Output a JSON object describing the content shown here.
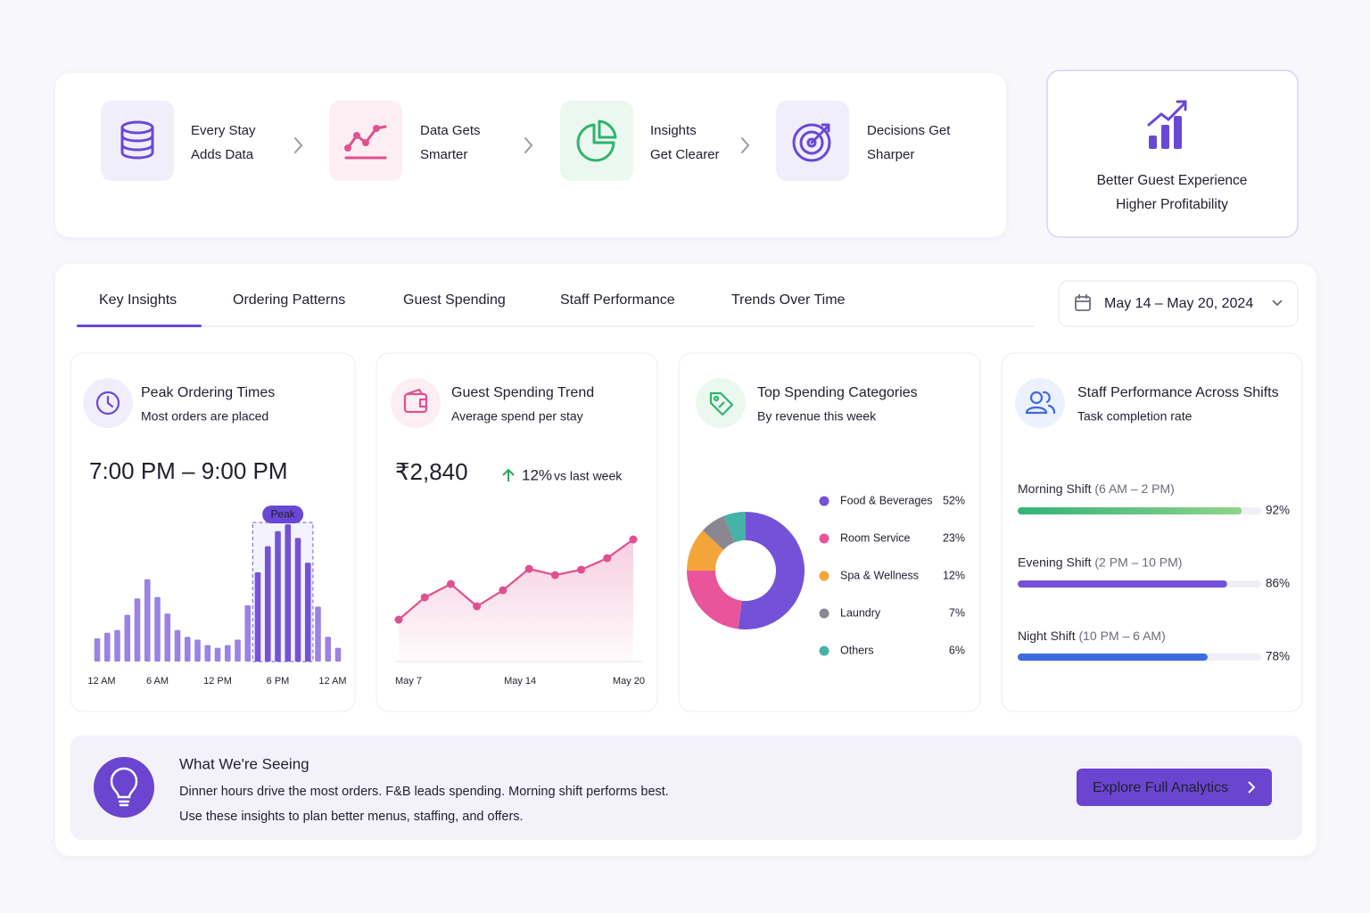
{
  "flow": {
    "steps": [
      {
        "lines": [
          "Every Stay",
          "Adds Data"
        ]
      },
      {
        "lines": [
          "Data Gets",
          "Smarter"
        ]
      },
      {
        "lines": [
          "Insights",
          "Get Clearer"
        ]
      },
      {
        "lines": [
          "Decisions Get",
          "Sharper"
        ]
      }
    ],
    "outcome": [
      "Better Guest Experience",
      "Higher Profitability"
    ]
  },
  "tabs": {
    "items": [
      "Key Insights",
      "Ordering Patterns",
      "Guest Spending",
      "Staff Performance",
      "Trends Over Time"
    ],
    "active": 0
  },
  "date_range": "May 14 – May 20, 2024",
  "chart_data": [
    {
      "type": "bar",
      "title": "Peak Ordering Times",
      "subtitle": "Most orders are placed",
      "headline": "7:00 PM – 9:00 PM",
      "annotation": "Peak",
      "categories": [
        "12 AM",
        null,
        null,
        null,
        null,
        null,
        "6 AM",
        null,
        null,
        null,
        null,
        null,
        "12 PM",
        null,
        null,
        null,
        null,
        null,
        "6 PM",
        null,
        null,
        null,
        null,
        null,
        "12 AM"
      ],
      "values": [
        17,
        21,
        23,
        34,
        46,
        60,
        47,
        35,
        23,
        18,
        16,
        12,
        10,
        12,
        16,
        41,
        65,
        84,
        95,
        100,
        90,
        72,
        40,
        18,
        10
      ],
      "ylim": [
        0,
        100
      ],
      "color": "#7452d8"
    },
    {
      "type": "line",
      "title": "Guest Spending Trend",
      "subtitle": "Average spend per stay",
      "headline": "₹2,840",
      "change": "12%",
      "change_note": "vs last week",
      "categories": [
        "May 7",
        null,
        null,
        null,
        null,
        "May 14",
        null,
        null,
        null,
        "May 20"
      ],
      "values": [
        47,
        72,
        87,
        62,
        80,
        104,
        97,
        103,
        116,
        137
      ],
      "ylim": [
        0,
        150
      ],
      "color": "#e0508e"
    },
    {
      "type": "pie",
      "title": "Top Spending Categories",
      "subtitle": "By revenue this week",
      "categories": [
        "Food & Beverages",
        "Room Service",
        "Spa & Wellness",
        "Laundry",
        "Others"
      ],
      "values": [
        52,
        23,
        12,
        7,
        6
      ],
      "value_labels": [
        "52%",
        "23%",
        "12%",
        "7%",
        "6%"
      ],
      "colors": [
        "#7452d8",
        "#e8559a",
        "#f4a53a",
        "#8a8793",
        "#45b3a6"
      ]
    },
    {
      "type": "barh",
      "title": "Staff Performance Across Shifts",
      "subtitle": "Task completion rate",
      "categories": [
        "Morning Shift",
        "Evening Shift",
        "Night Shift"
      ],
      "hours": [
        "(6 AM – 2 PM)",
        "(2 PM – 10 PM)",
        "(10 PM – 6 AM)"
      ],
      "values": [
        92,
        86,
        78
      ],
      "value_labels": [
        "92%",
        "86%",
        "78%"
      ],
      "xlim": [
        0,
        100
      ],
      "colors": [
        "#3dbb7e",
        "#7452d8",
        "#3f6ae0"
      ]
    }
  ],
  "insight": {
    "title": "What We're Seeing",
    "lines": [
      "Dinner hours drive the most orders. F&B leads spending. Morning shift performs best.",
      "Use these insights to plan better menus, staffing, and offers."
    ],
    "button": "Explore Full Analytics"
  }
}
